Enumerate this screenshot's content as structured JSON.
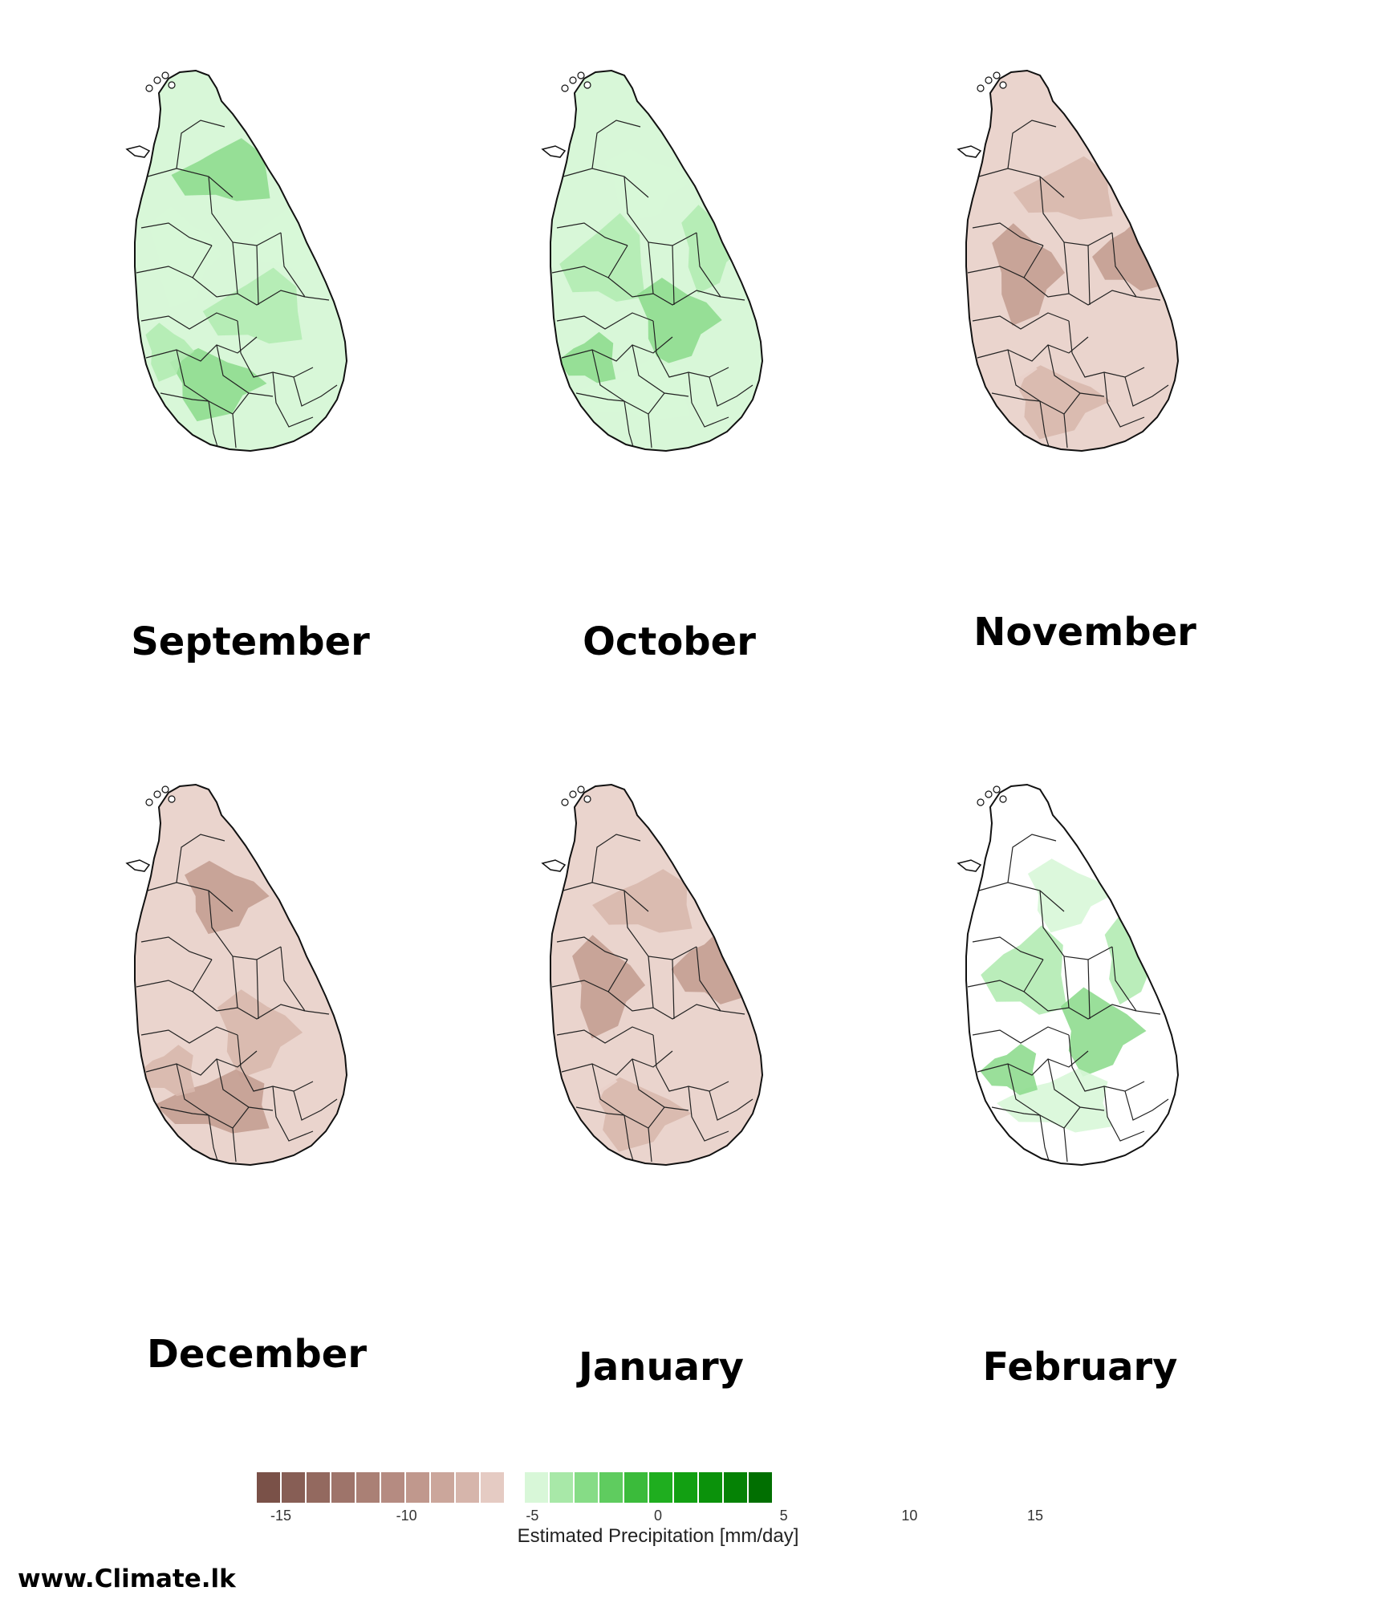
{
  "months": [
    {
      "name": "September",
      "anomaly": "wet",
      "level": 2
    },
    {
      "name": "October",
      "anomaly": "wet",
      "level": 2
    },
    {
      "name": "November",
      "anomaly": "dry",
      "level": 2
    },
    {
      "name": "December",
      "anomaly": "dry",
      "level": 2
    },
    {
      "name": "January",
      "anomaly": "dry",
      "level": 3
    },
    {
      "name": "February",
      "anomaly": "wet",
      "level": 1
    }
  ],
  "legend": {
    "title": "Estimated Precipitation [mm/day]",
    "ticks": [
      "-15",
      "-10",
      "-5",
      "0",
      "5",
      "10",
      "15"
    ],
    "dry_colors": [
      "#7a5148",
      "#875e55",
      "#93695f",
      "#9e746a",
      "#aa8075",
      "#b58b81",
      "#c0988d",
      "#cba69b",
      "#d6b5ab",
      "#e5cbc3"
    ],
    "wet_colors": [
      "#d8f7d8",
      "#a8e8a8",
      "#86dc86",
      "#5fcc5f",
      "#3bbb3b",
      "#1fae1f",
      "#12a012",
      "#0b920b",
      "#058205",
      "#016f01"
    ]
  },
  "footer": "www.Climate.lk"
}
